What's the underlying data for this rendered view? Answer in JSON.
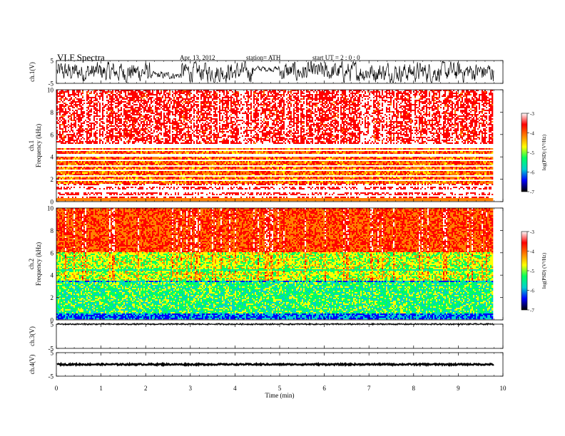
{
  "header": {
    "title": "VLF  Spectra",
    "date": "Apr. 13, 2012",
    "station": "station= ATH",
    "start": "start  UT  =    2  : 0   : 0"
  },
  "colors": {
    "cbar_stops": [
      "#000000",
      "#0000ff",
      "#00d0d0",
      "#00ff60",
      "#ffff00",
      "#ff8000",
      "#ff0000",
      "#ffffff"
    ],
    "trace": "#000000"
  },
  "chart_data": [
    {
      "type": "line",
      "name": "ch1-waveform",
      "ylabel": "ch.1(V)",
      "ylim": [
        -5,
        5
      ],
      "yticks": [
        "5",
        "-5"
      ],
      "xlim": [
        0,
        10
      ],
      "note_envelope": "large-amplitude noisy waveform, quieter near 2.1-2.8 min and 4.4-5.0 min"
    },
    {
      "type": "heatmap",
      "name": "ch1-spectrogram",
      "ylabel": "ch.1\nFrequency  (kHz)",
      "ylim": [
        0,
        10
      ],
      "yticks": [
        "0",
        "2",
        "4",
        "6",
        "8",
        "10"
      ],
      "xlim": [
        0,
        9.8
      ],
      "dominant_levels": {
        "0-1.5 kHz": -3.5,
        "1.5-5 kHz": -4.0,
        "5-10 kHz": -3.8
      },
      "strong_lines_khz": [
        0.5,
        0.9,
        1.3,
        1.9,
        2.3,
        2.8,
        3.1,
        3.6,
        4.1,
        4.5,
        4.8,
        5.0
      ],
      "colorbar": {
        "label": "log(PSD) (V²/Hz)",
        "ticks": [
          "-3",
          "-4",
          "-5",
          "-6",
          "-7"
        ],
        "range": [
          -7,
          -3
        ]
      }
    },
    {
      "type": "heatmap",
      "name": "ch2-spectrogram",
      "ylabel": "ch.2\nFrequency  (kHz)",
      "ylim": [
        0,
        10
      ],
      "yticks": [
        "0",
        "2",
        "4",
        "6",
        "8",
        "10"
      ],
      "xlim": [
        0,
        9.8
      ],
      "dominant_levels": {
        "0-0.5 kHz": -6.5,
        "0.5-3.5 kHz": -5.5,
        "3.5-6 kHz": -5.0,
        "6-10 kHz": -4.0
      },
      "colorbar": {
        "label": "log(PSD) (V²/Hz)",
        "ticks": [
          "-3",
          "-4",
          "-5",
          "-6",
          "-7"
        ],
        "range": [
          -7,
          -3
        ]
      }
    },
    {
      "type": "line",
      "name": "ch3-waveform",
      "ylabel": "ch.3(V)",
      "ylim": [
        -5,
        5
      ],
      "yticks": [
        "5",
        "-5"
      ],
      "xlim": [
        0,
        10
      ],
      "level": 5
    },
    {
      "type": "line",
      "name": "ch4-waveform",
      "ylabel": "ch.4(V)",
      "ylim": [
        -5,
        5
      ],
      "yticks": [
        "5",
        "-5"
      ],
      "xlim": [
        0,
        10
      ],
      "level": 0
    }
  ],
  "xaxis": {
    "label": "Time  (min)",
    "ticks": [
      "0",
      "1",
      "2",
      "3",
      "4",
      "5",
      "6",
      "7",
      "8",
      "9",
      "10"
    ],
    "range": [
      0,
      10
    ]
  }
}
